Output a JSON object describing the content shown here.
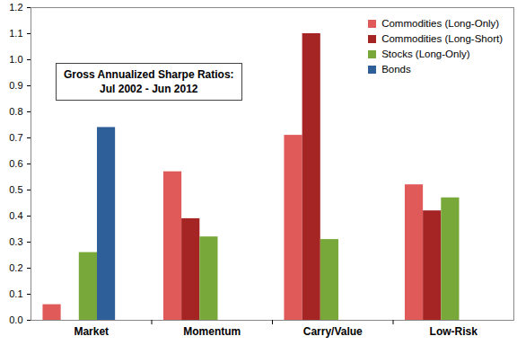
{
  "chart_data": {
    "type": "bar",
    "title": "Gross Annualized Sharpe Ratios:",
    "subtitle": "Jul 2002 - Jun 2012",
    "categories": [
      "Market",
      "Momentum",
      "Carry/Value",
      "Low-Risk"
    ],
    "series": [
      {
        "name": "Commodities (Long-Only)",
        "color": "#e05a5a",
        "values": [
          0.06,
          0.57,
          0.71,
          0.52
        ]
      },
      {
        "name": "Commodities (Long-Short)",
        "color": "#a52525",
        "values": [
          null,
          0.39,
          1.1,
          0.42
        ]
      },
      {
        "name": "Stocks (Long-Only)",
        "color": "#78a83a",
        "values": [
          0.26,
          0.32,
          0.31,
          0.47
        ]
      },
      {
        "name": "Bonds",
        "color": "#2f5f98",
        "values": [
          0.74,
          null,
          null,
          null
        ]
      }
    ],
    "ylim": [
      0,
      1.2
    ],
    "yticks": [
      {
        "value": 0,
        "label": "0.0"
      },
      0.1,
      0.2,
      0.3,
      0.4,
      0.5,
      0.6,
      0.7,
      0.8,
      0.9,
      {
        "value": 1,
        "label": "1.0"
      },
      1.1,
      1.2
    ],
    "grid": false,
    "legend": "top-right"
  }
}
